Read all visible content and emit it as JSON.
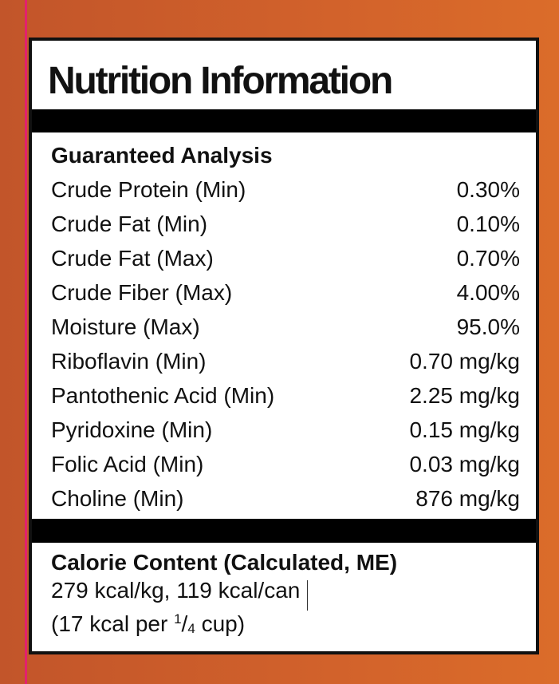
{
  "header": {
    "title": "Nutrition Information"
  },
  "analysis": {
    "heading": "Guaranteed Analysis",
    "rows": [
      [
        "Crude Protein (Min)",
        "0.30%"
      ],
      [
        "Crude Fat (Min)",
        "0.10%"
      ],
      [
        "Crude Fat (Max)",
        "0.70%"
      ],
      [
        "Crude Fiber (Max)",
        "4.00%"
      ],
      [
        "Moisture (Max)",
        "95.0%"
      ],
      [
        "Riboflavin (Min)",
        "0.70 mg/kg"
      ],
      [
        "Pantothenic Acid (Min)",
        "2.25 mg/kg"
      ],
      [
        "Pyridoxine (Min)",
        "0.15 mg/kg"
      ],
      [
        "Folic Acid (Min)",
        "0.03 mg/kg"
      ],
      [
        "Choline (Min)",
        "876 mg/kg"
      ]
    ]
  },
  "calorie": {
    "heading": "Calorie Content (Calculated, ME)",
    "line1": "279 kcal/kg, 119 kcal/can",
    "line2": {
      "before": "(17 kcal per ",
      "numerator": "1",
      "slash": "/",
      "denominator": "4",
      "after": " cup)"
    }
  }
}
